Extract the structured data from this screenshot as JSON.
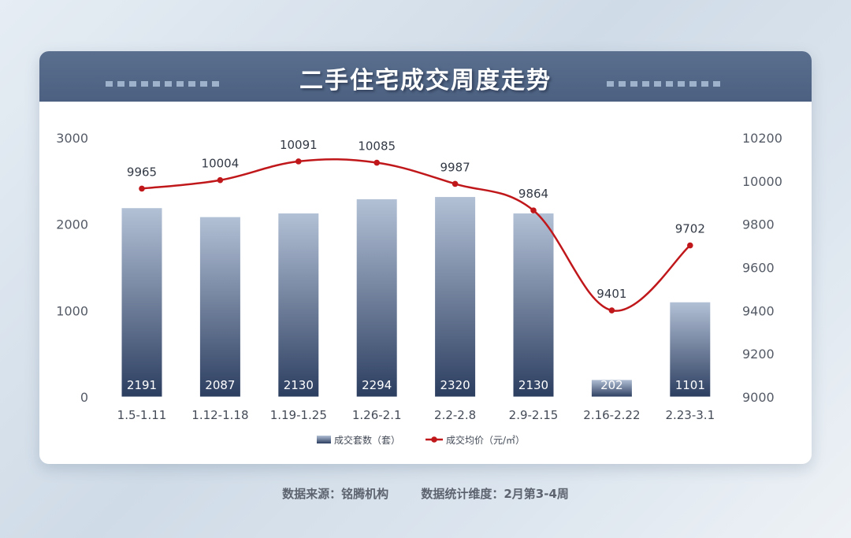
{
  "title": "二手住宅成交周度走势",
  "footer": {
    "source": "数据来源：铭腾机构",
    "period": "数据统计维度：2月第3-4周"
  },
  "colors": {
    "header": "#4f6384",
    "bar_top": "#b3c1d6",
    "bar_bottom": "#2c3e60",
    "line": "#c0171b"
  },
  "chart_data": {
    "type": "bar",
    "categories": [
      "1.5-1.11",
      "1.12-1.18",
      "1.19-1.25",
      "1.26-2.1",
      "2.2-2.8",
      "2.9-2.15",
      "2.16-2.22",
      "2.23-3.1"
    ],
    "series": [
      {
        "name": "成交套数（套）",
        "type": "bar",
        "axis": "left",
        "values": [
          2191,
          2087,
          2130,
          2294,
          2320,
          2130,
          202,
          1101
        ]
      },
      {
        "name": "成交均价（元/㎡）",
        "type": "line",
        "axis": "right",
        "values": [
          9965,
          10004,
          10091,
          10085,
          9987,
          9864,
          9401,
          9702
        ]
      }
    ],
    "y_left": {
      "ticks": [
        "0",
        "1000",
        "2000",
        "3000"
      ],
      "lim": [
        0,
        3000
      ]
    },
    "y_right": {
      "ticks": [
        "9000",
        "9200",
        "9400",
        "9600",
        "9800",
        "10000",
        "10200"
      ],
      "lim": [
        9000,
        10200
      ]
    },
    "grid": false,
    "legend": "bottom-center"
  }
}
